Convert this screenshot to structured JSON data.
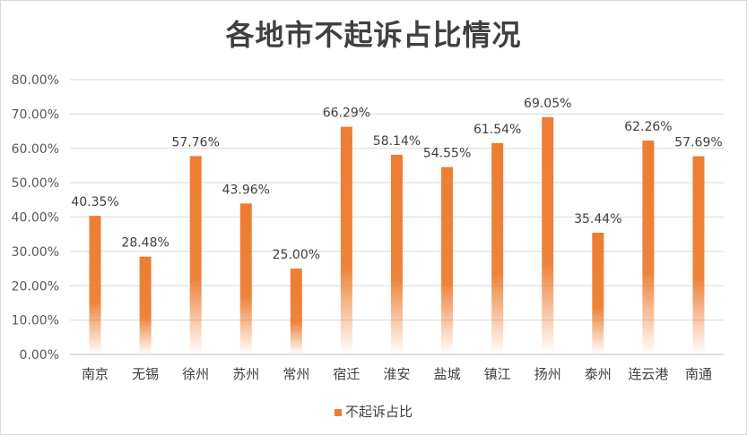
{
  "chart_data": {
    "type": "bar",
    "title": "各地市不起诉占比情况",
    "categories": [
      "南京",
      "无锡",
      "徐州",
      "苏州",
      "常州",
      "宿迁",
      "淮安",
      "盐城",
      "镇江",
      "扬州",
      "泰州",
      "连云港",
      "南通"
    ],
    "series": [
      {
        "name": "不起诉占比",
        "values": [
          40.35,
          28.48,
          57.76,
          43.96,
          25.0,
          66.29,
          58.14,
          54.55,
          61.54,
          69.05,
          35.44,
          62.26,
          57.69
        ],
        "labels": [
          "40.35%",
          "28.48%",
          "57.76%",
          "43.96%",
          "25.00%",
          "66.29%",
          "58.14%",
          "54.55%",
          "61.54%",
          "69.05%",
          "35.44%",
          "62.26%",
          "57.69%"
        ],
        "color": "#ed7d31"
      }
    ],
    "ylim": [
      0,
      80
    ],
    "yticks": [
      "0.00%",
      "10.00%",
      "20.00%",
      "30.00%",
      "40.00%",
      "50.00%",
      "60.00%",
      "70.00%",
      "80.00%"
    ],
    "grid": true,
    "legend": "bottom"
  }
}
